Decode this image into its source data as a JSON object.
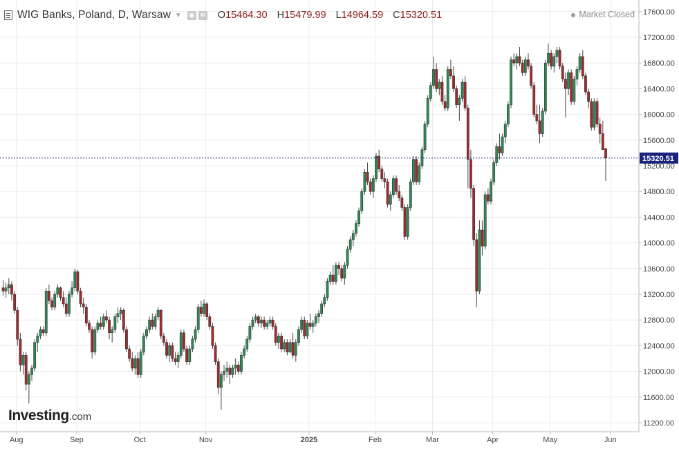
{
  "header": {
    "title": "WIG Banks, Poland, D, Warsaw",
    "open_label": "O",
    "open": "15464.30",
    "high_label": "H",
    "high": "15479.99",
    "low_label": "L",
    "low": "14964.59",
    "close_label": "C",
    "close": "15320.51",
    "menu_icon": "list-icon",
    "caret_icon": "chevron-down-icon",
    "visibility_icon": "eye-icon",
    "settings_icon": "gear-icon"
  },
  "status": {
    "market": "Market Closed"
  },
  "brand": {
    "name": "Investing",
    "suffix": ".com"
  },
  "colors": {
    "up": "#2e8b57",
    "down": "#a52a2a",
    "price_line": "#1a237e",
    "price_label_bg": "#1a237e"
  },
  "chart_data": {
    "type": "candlestick",
    "title": "WIG Banks, Poland, D, Warsaw",
    "ylim": [
      11000,
      17800
    ],
    "y_ticks": [
      "17600.00",
      "17200.00",
      "16800.00",
      "16400.00",
      "16000.00",
      "15600.00",
      "15200.00",
      "14800.00",
      "14400.00",
      "14000.00",
      "13600.00",
      "13200.00",
      "12800.00",
      "12400.00",
      "12000.00",
      "11600.00",
      "11200.00"
    ],
    "x_ticks": [
      {
        "label": "Aug",
        "index": 5
      },
      {
        "label": "Sep",
        "index": 26
      },
      {
        "label": "Oct",
        "index": 48
      },
      {
        "label": "Nov",
        "index": 71
      },
      {
        "label": "2025",
        "index": 107
      },
      {
        "label": "Feb",
        "index": 130
      },
      {
        "label": "Mar",
        "index": 150
      },
      {
        "label": "Apr",
        "index": 171
      },
      {
        "label": "May",
        "index": 191
      },
      {
        "label": "Jun",
        "index": 212
      }
    ],
    "last_price_label": "15320.51",
    "ohlc": [
      [
        13300,
        13420,
        13180,
        13250
      ],
      [
        13250,
        13380,
        13150,
        13300
      ],
      [
        13300,
        13450,
        13200,
        13350
      ],
      [
        13350,
        13400,
        13100,
        13200
      ],
      [
        13200,
        13250,
        12900,
        12950
      ],
      [
        12950,
        13000,
        12400,
        12500
      ],
      [
        12500,
        12600,
        12000,
        12100
      ],
      [
        12100,
        12300,
        11950,
        12250
      ],
      [
        12250,
        12300,
        11700,
        11800
      ],
      [
        11800,
        12000,
        11500,
        11950
      ],
      [
        11950,
        12100,
        11850,
        12050
      ],
      [
        12050,
        12500,
        12000,
        12450
      ],
      [
        12450,
        12600,
        12300,
        12550
      ],
      [
        12550,
        12700,
        12500,
        12650
      ],
      [
        12650,
        12700,
        12550,
        12600
      ],
      [
        12600,
        13300,
        12550,
        13250
      ],
      [
        13250,
        13350,
        13050,
        13100
      ],
      [
        13100,
        13150,
        12950,
        13000
      ],
      [
        13000,
        13250,
        12950,
        13200
      ],
      [
        13200,
        13350,
        13150,
        13300
      ],
      [
        13300,
        13320,
        13100,
        13150
      ],
      [
        13150,
        13250,
        13000,
        13050
      ],
      [
        13050,
        13150,
        12850,
        12900
      ],
      [
        12900,
        13250,
        12850,
        13200
      ],
      [
        13200,
        13400,
        13150,
        13300
      ],
      [
        13300,
        13600,
        13250,
        13550
      ],
      [
        13550,
        13580,
        13200,
        13250
      ],
      [
        13250,
        13300,
        13000,
        13050
      ],
      [
        13050,
        13150,
        12900,
        13000
      ],
      [
        13000,
        13050,
        12700,
        12750
      ],
      [
        12750,
        12800,
        12600,
        12650
      ],
      [
        12650,
        12700,
        12200,
        12300
      ],
      [
        12300,
        12700,
        12250,
        12650
      ],
      [
        12650,
        12800,
        12600,
        12750
      ],
      [
        12750,
        12850,
        12650,
        12700
      ],
      [
        12700,
        12900,
        12650,
        12850
      ],
      [
        12850,
        12950,
        12750,
        12800
      ],
      [
        12800,
        12850,
        12500,
        12600
      ],
      [
        12600,
        12700,
        12450,
        12650
      ],
      [
        12650,
        12900,
        12600,
        12850
      ],
      [
        12850,
        13000,
        12750,
        12900
      ],
      [
        12900,
        13000,
        12800,
        12950
      ],
      [
        12950,
        12980,
        12600,
        12650
      ],
      [
        12650,
        12700,
        12300,
        12350
      ],
      [
        12350,
        12400,
        12150,
        12200
      ],
      [
        12200,
        12300,
        12000,
        12050
      ],
      [
        12050,
        12250,
        11950,
        12200
      ],
      [
        12200,
        12300,
        11900,
        11950
      ],
      [
        11950,
        12350,
        11900,
        12300
      ],
      [
        12300,
        12600,
        12250,
        12550
      ],
      [
        12550,
        12700,
        12500,
        12650
      ],
      [
        12650,
        12850,
        12600,
        12800
      ],
      [
        12800,
        12900,
        12650,
        12700
      ],
      [
        12700,
        12900,
        12650,
        12850
      ],
      [
        12850,
        13000,
        12800,
        12950
      ],
      [
        12950,
        12970,
        12500,
        12550
      ],
      [
        12550,
        12600,
        12400,
        12450
      ],
      [
        12450,
        12500,
        12200,
        12250
      ],
      [
        12250,
        12450,
        12150,
        12400
      ],
      [
        12400,
        12450,
        12150,
        12200
      ],
      [
        12200,
        12300,
        12100,
        12150
      ],
      [
        12150,
        12300,
        12050,
        12250
      ],
      [
        12250,
        12650,
        12200,
        12600
      ],
      [
        12600,
        12650,
        12300,
        12350
      ],
      [
        12350,
        12400,
        12100,
        12150
      ],
      [
        12150,
        12400,
        12100,
        12350
      ],
      [
        12350,
        12550,
        12300,
        12500
      ],
      [
        12500,
        12700,
        12450,
        12650
      ],
      [
        12650,
        13050,
        12600,
        13000
      ],
      [
        13000,
        13100,
        12850,
        12900
      ],
      [
        12900,
        13120,
        12850,
        13050
      ],
      [
        13050,
        13080,
        12800,
        12850
      ],
      [
        12850,
        12900,
        12650,
        12700
      ],
      [
        12700,
        12750,
        12350,
        12400
      ],
      [
        12400,
        12450,
        12100,
        12150
      ],
      [
        12150,
        12200,
        11650,
        11750
      ],
      [
        11750,
        12000,
        11400,
        11950
      ],
      [
        11950,
        12100,
        11850,
        12000
      ],
      [
        12000,
        12150,
        11900,
        12050
      ],
      [
        12050,
        12100,
        11800,
        11950
      ],
      [
        11950,
        12100,
        11900,
        12050
      ],
      [
        12050,
        12200,
        11950,
        12100
      ],
      [
        12100,
        12150,
        11950,
        12000
      ],
      [
        12000,
        12300,
        11950,
        12250
      ],
      [
        12250,
        12400,
        12200,
        12350
      ],
      [
        12350,
        12550,
        12300,
        12500
      ],
      [
        12500,
        12750,
        12450,
        12700
      ],
      [
        12700,
        12850,
        12650,
        12800
      ],
      [
        12800,
        12900,
        12750,
        12850
      ],
      [
        12850,
        12880,
        12700,
        12750
      ],
      [
        12750,
        12850,
        12680,
        12800
      ],
      [
        12800,
        12850,
        12650,
        12700
      ],
      [
        12700,
        12800,
        12650,
        12750
      ],
      [
        12750,
        12850,
        12700,
        12800
      ],
      [
        12800,
        12850,
        12650,
        12700
      ],
      [
        12700,
        12750,
        12400,
        12450
      ],
      [
        12450,
        12600,
        12350,
        12550
      ],
      [
        12550,
        12600,
        12300,
        12350
      ],
      [
        12350,
        12500,
        12300,
        12450
      ],
      [
        12450,
        12500,
        12250,
        12300
      ],
      [
        12300,
        12500,
        12280,
        12450
      ],
      [
        12450,
        12600,
        12200,
        12250
      ],
      [
        12250,
        12500,
        12150,
        12450
      ],
      [
        12450,
        12700,
        12400,
        12650
      ],
      [
        12650,
        12850,
        12600,
        12800
      ],
      [
        12800,
        12850,
        12500,
        12550
      ],
      [
        12550,
        12800,
        12500,
        12750
      ],
      [
        12750,
        12900,
        12650,
        12700
      ],
      [
        12700,
        12800,
        12600,
        12750
      ],
      [
        12750,
        12900,
        12700,
        12850
      ],
      [
        12850,
        12950,
        12750,
        12900
      ],
      [
        12900,
        13100,
        12850,
        13050
      ],
      [
        13050,
        13200,
        13000,
        13150
      ],
      [
        13150,
        13450,
        13100,
        13400
      ],
      [
        13400,
        13550,
        13350,
        13500
      ],
      [
        13500,
        13650,
        13350,
        13400
      ],
      [
        13400,
        13700,
        13350,
        13650
      ],
      [
        13650,
        13700,
        13500,
        13600
      ],
      [
        13600,
        13650,
        13400,
        13450
      ],
      [
        13450,
        13700,
        13350,
        13650
      ],
      [
        13650,
        13950,
        13600,
        13900
      ],
      [
        13900,
        14100,
        13850,
        14050
      ],
      [
        14050,
        14200,
        13950,
        14150
      ],
      [
        14150,
        14350,
        14100,
        14300
      ],
      [
        14300,
        14550,
        14250,
        14500
      ],
      [
        14500,
        14850,
        14450,
        14800
      ],
      [
        14800,
        15150,
        14750,
        15100
      ],
      [
        15100,
        15250,
        14900,
        14950
      ],
      [
        14950,
        15000,
        14750,
        14800
      ],
      [
        14800,
        15050,
        14700,
        15000
      ],
      [
        15000,
        15400,
        14950,
        15350
      ],
      [
        15350,
        15450,
        15100,
        15150
      ],
      [
        15150,
        15200,
        14950,
        15000
      ],
      [
        15000,
        15100,
        14850,
        14950
      ],
      [
        14950,
        15000,
        14550,
        14600
      ],
      [
        14600,
        14800,
        14500,
        14750
      ],
      [
        14750,
        15050,
        14700,
        15000
      ],
      [
        15000,
        15050,
        14750,
        14800
      ],
      [
        14800,
        14900,
        14650,
        14700
      ],
      [
        14700,
        14750,
        14500,
        14550
      ],
      [
        14550,
        14600,
        14050,
        14100
      ],
      [
        14100,
        14600,
        14050,
        14550
      ],
      [
        14550,
        15000,
        14500,
        14950
      ],
      [
        14950,
        15350,
        14900,
        15300
      ],
      [
        15300,
        15350,
        14900,
        14950
      ],
      [
        14950,
        15250,
        14900,
        15200
      ],
      [
        15200,
        15500,
        15150,
        15450
      ],
      [
        15450,
        15900,
        15400,
        15850
      ],
      [
        15850,
        16300,
        15800,
        16250
      ],
      [
        16250,
        16500,
        16200,
        16450
      ],
      [
        16450,
        16900,
        16400,
        16700
      ],
      [
        16700,
        16800,
        16350,
        16400
      ],
      [
        16400,
        16550,
        16300,
        16500
      ],
      [
        16500,
        16600,
        16150,
        16200
      ],
      [
        16200,
        16300,
        16050,
        16100
      ],
      [
        16100,
        16750,
        16050,
        16700
      ],
      [
        16700,
        16850,
        16550,
        16600
      ],
      [
        16600,
        16750,
        16350,
        16400
      ],
      [
        16400,
        16450,
        16100,
        16150
      ],
      [
        16150,
        16300,
        15900,
        16250
      ],
      [
        16250,
        16550,
        16200,
        16500
      ],
      [
        16500,
        16600,
        16050,
        16100
      ],
      [
        16100,
        16150,
        14850,
        15300
      ],
      [
        15300,
        15450,
        14700,
        14850
      ],
      [
        14850,
        14900,
        13950,
        14050
      ],
      [
        14050,
        14150,
        13000,
        13250
      ],
      [
        13250,
        14350,
        13200,
        14200
      ],
      [
        14200,
        14350,
        13800,
        13950
      ],
      [
        13950,
        14800,
        13900,
        14750
      ],
      [
        14750,
        14850,
        14600,
        14650
      ],
      [
        14650,
        15000,
        14600,
        14950
      ],
      [
        14950,
        15300,
        14900,
        15250
      ],
      [
        15250,
        15550,
        15200,
        15500
      ],
      [
        15500,
        15700,
        15300,
        15400
      ],
      [
        15400,
        15700,
        15350,
        15650
      ],
      [
        15650,
        15900,
        15550,
        15850
      ],
      [
        15850,
        16200,
        15800,
        16150
      ],
      [
        16150,
        16900,
        16100,
        16850
      ],
      [
        16850,
        16950,
        16750,
        16800
      ],
      [
        16800,
        16950,
        16700,
        16900
      ],
      [
        16900,
        17050,
        16750,
        16800
      ],
      [
        16800,
        16850,
        16600,
        16650
      ],
      [
        16650,
        16900,
        16600,
        16850
      ],
      [
        16850,
        16950,
        16700,
        16750
      ],
      [
        16750,
        16800,
        16400,
        16450
      ],
      [
        16450,
        16500,
        15950,
        16000
      ],
      [
        16000,
        16150,
        15850,
        15900
      ],
      [
        15900,
        16150,
        15550,
        15700
      ],
      [
        15700,
        16100,
        15650,
        16050
      ],
      [
        16050,
        16850,
        16000,
        16800
      ],
      [
        16800,
        17100,
        16750,
        16950
      ],
      [
        16950,
        17000,
        16700,
        16750
      ],
      [
        16750,
        16950,
        16650,
        16900
      ],
      [
        16900,
        17050,
        16800,
        17000
      ],
      [
        17000,
        17050,
        16700,
        16750
      ],
      [
        16750,
        16800,
        16500,
        16550
      ],
      [
        16550,
        16650,
        15950,
        16400
      ],
      [
        16400,
        16700,
        16300,
        16650
      ],
      [
        16650,
        16700,
        16150,
        16200
      ],
      [
        16200,
        16600,
        16150,
        16550
      ],
      [
        16550,
        16750,
        16450,
        16700
      ],
      [
        16700,
        16950,
        16650,
        16900
      ],
      [
        16900,
        17000,
        16550,
        16600
      ],
      [
        16600,
        16650,
        16300,
        16350
      ],
      [
        16350,
        16400,
        16100,
        16200
      ],
      [
        16200,
        16250,
        15750,
        15800
      ],
      [
        15800,
        16250,
        15750,
        16200
      ],
      [
        16200,
        16250,
        15800,
        15850
      ],
      [
        15850,
        15950,
        15550,
        15700
      ],
      [
        15700,
        15900,
        15500,
        15450
      ],
      [
        15464.3,
        15479.99,
        14964.59,
        15320.51
      ]
    ]
  }
}
